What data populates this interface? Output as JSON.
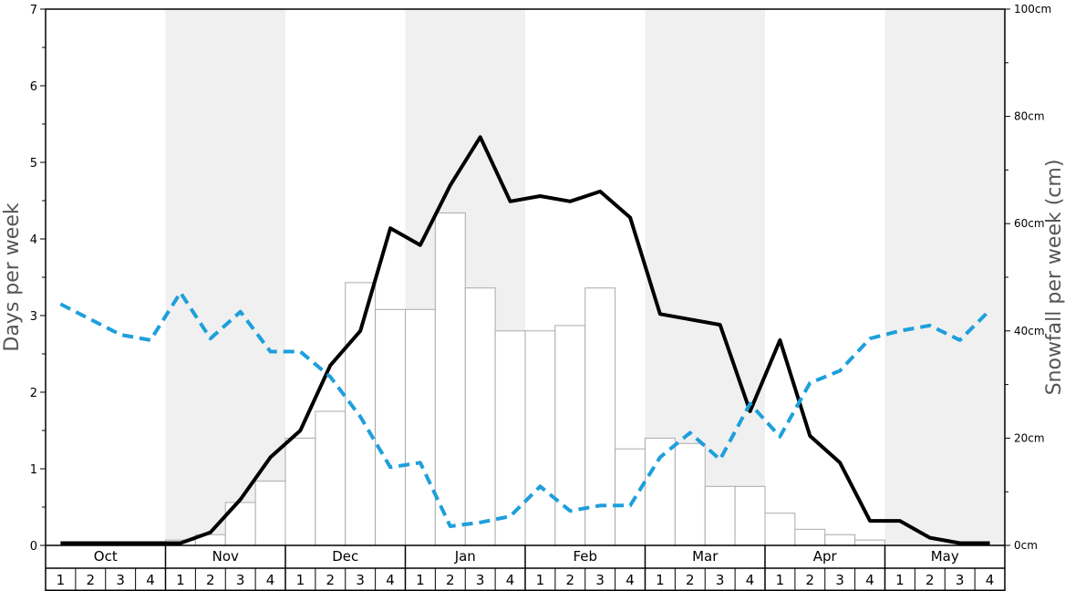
{
  "chart_data": {
    "type": "bar+line",
    "ylabel_left": "Days per week",
    "ylabel_right": "Snowfall per week (cm)",
    "ylim_left": [
      0,
      7
    ],
    "ylim_right": [
      0,
      100
    ],
    "yticks_left": [
      "0",
      "1",
      "2",
      "3",
      "4",
      "5",
      "6",
      "7"
    ],
    "yticks_right": [
      "0cm",
      "20cm",
      "40cm",
      "60cm",
      "80cm",
      "100cm"
    ],
    "months": [
      "Oct",
      "Nov",
      "Dec",
      "Jan",
      "Feb",
      "Mar",
      "Apr",
      "May"
    ],
    "weeks": [
      "1",
      "2",
      "3",
      "4"
    ],
    "shaded_months": [
      "Nov",
      "Jan",
      "Mar",
      "May"
    ],
    "colors": {
      "shade": "#f0f0f0",
      "bar_fill": "#ffffff",
      "bar_stroke": "#aaaaaa",
      "solid_line": "#000000",
      "dashed_line": "#1e9fdc"
    },
    "series": [
      {
        "type": "bar",
        "axis": "right",
        "values": [
          0,
          0,
          0,
          0,
          1,
          2,
          8,
          12,
          20,
          25,
          49,
          44,
          44,
          62,
          48,
          40,
          40,
          41,
          48,
          18,
          20,
          19,
          11,
          11,
          6,
          3,
          2,
          1,
          0,
          0,
          0,
          0
        ]
      },
      {
        "type": "line",
        "style": "solid",
        "axis": "left",
        "values": [
          0.03,
          0.03,
          0.03,
          0.03,
          0.03,
          0.17,
          0.6,
          1.15,
          1.5,
          2.35,
          2.8,
          4.14,
          3.92,
          4.7,
          5.33,
          4.49,
          4.56,
          4.49,
          4.62,
          4.28,
          3.02,
          2.95,
          2.88,
          1.75,
          2.68,
          1.43,
          1.08,
          0.32,
          0.32,
          0.1,
          0.03,
          0.03
        ]
      },
      {
        "type": "line",
        "style": "dashed",
        "axis": "left",
        "values": [
          3.15,
          2.95,
          2.75,
          2.68,
          3.3,
          2.7,
          3.05,
          2.53,
          2.53,
          2.2,
          1.68,
          1.02,
          1.08,
          0.25,
          0.3,
          0.38,
          0.77,
          0.45,
          0.52,
          0.52,
          1.15,
          1.47,
          1.12,
          1.85,
          1.42,
          2.12,
          2.28,
          2.7,
          2.8,
          2.87,
          2.68,
          3.07
        ]
      }
    ]
  }
}
